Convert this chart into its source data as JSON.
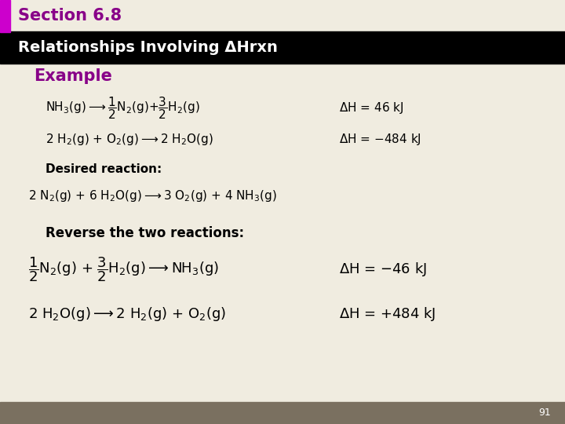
{
  "title": "Section 6.8",
  "subtitle": "Relationships Involving ΔHrxn",
  "bg_color": "#f0ece0",
  "header_bg": "#000000",
  "title_color": "#880088",
  "subtitle_color": "#ffffff",
  "accent_bar_color": "#cc00cc",
  "example_color": "#880088",
  "footer_bg": "#7a7060",
  "footer_text": "91"
}
